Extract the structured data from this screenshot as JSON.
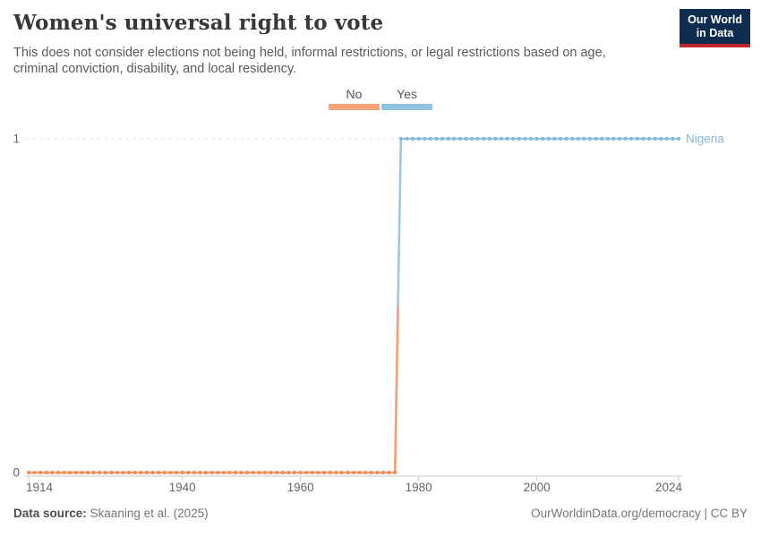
{
  "header": {
    "title": "Women's universal right to vote",
    "subtitle_line1": "This does not consider elections not being held, informal restrictions, or legal restrictions based on age,",
    "subtitle_line2": "criminal conviction, disability, and local residency."
  },
  "logo": {
    "line1": "Our World",
    "line2": "in Data",
    "bg_color": "#0e2d4e",
    "accent_color": "#c3262a"
  },
  "legend": {
    "items": [
      {
        "label": "No",
        "color": "#F5A478"
      },
      {
        "label": "Yes",
        "color": "#92C4DF"
      }
    ]
  },
  "chart_data": {
    "type": "line",
    "title": "Women's universal right to vote",
    "entity": "Nigeria",
    "xlabel": "",
    "ylabel": "",
    "x_axis": {
      "min": 1914,
      "max": 2024,
      "ticks": [
        1914,
        1940,
        1960,
        1980,
        2000,
        2024
      ]
    },
    "y_axis": {
      "min": 0,
      "max": 1,
      "ticks": [
        0,
        1
      ]
    },
    "series": [
      {
        "name": "No",
        "value": 0,
        "start_year": 1914,
        "end_year": 1976,
        "line_color": "#F4A172",
        "dot_color": "#EF8E5C"
      },
      {
        "name": "Yes",
        "value": 1,
        "start_year": 1977,
        "end_year": 2024,
        "line_color": "#9CC7E2",
        "dot_color": "#84BAD9"
      }
    ],
    "entity_label": {
      "text": "Nigeria",
      "color": "#83B6D7"
    },
    "grid_on": true,
    "grid_color": "#DCDCDC",
    "axis_color": "#CBCBCB",
    "tick_label_color": "#666666",
    "legend_position": "top-center"
  },
  "footer": {
    "source_label": "Data source:",
    "source_value": "Skaaning et al. (2025)",
    "link_text": "OurWorldinData.org/democracy | CC BY"
  }
}
